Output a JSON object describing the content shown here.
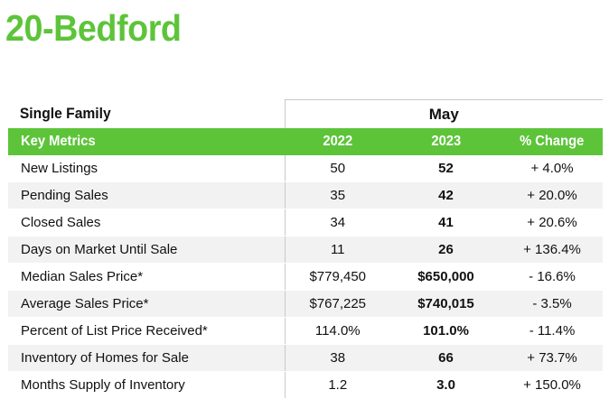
{
  "page": {
    "title": "20-Bedford"
  },
  "table": {
    "section_label": "Single Family",
    "month": "May",
    "headers": {
      "metric": "Key Metrics",
      "y1": "2022",
      "y2": "2023",
      "change": "% Change"
    },
    "rows": [
      {
        "metric": "New Listings",
        "y1": "50",
        "y2": "52",
        "change": "+ 4.0%"
      },
      {
        "metric": "Pending Sales",
        "y1": "35",
        "y2": "42",
        "change": "+ 20.0%"
      },
      {
        "metric": "Closed Sales",
        "y1": "34",
        "y2": "41",
        "change": "+ 20.6%"
      },
      {
        "metric": "Days on Market Until Sale",
        "y1": "11",
        "y2": "26",
        "change": "+ 136.4%"
      },
      {
        "metric": "Median Sales Price*",
        "y1": "$779,450",
        "y2": "$650,000",
        "change": "- 16.6%"
      },
      {
        "metric": "Average Sales Price*",
        "y1": "$767,225",
        "y2": "$740,015",
        "change": "- 3.5%"
      },
      {
        "metric": "Percent of List Price Received*",
        "y1": "114.0%",
        "y2": "101.0%",
        "change": "- 11.4%"
      },
      {
        "metric": "Inventory of Homes for Sale",
        "y1": "38",
        "y2": "66",
        "change": "+ 73.7%"
      },
      {
        "metric": "Months Supply of Inventory",
        "y1": "1.2",
        "y2": "3.0",
        "change": "+ 150.0%"
      }
    ]
  },
  "colors": {
    "accent": "#5dc43a",
    "alt_row": "#f2f2f2",
    "divider": "#c9c9c9"
  }
}
